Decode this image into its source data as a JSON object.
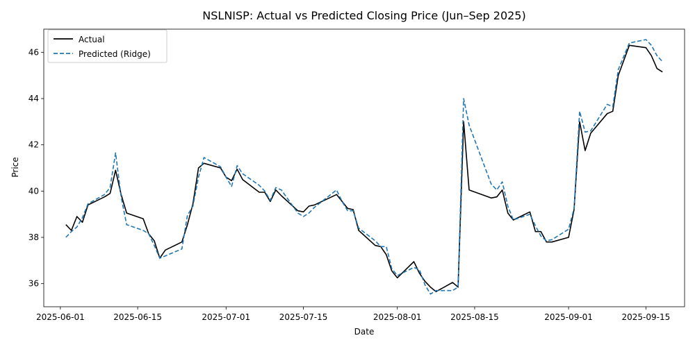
{
  "chart_data": {
    "type": "line",
    "title": "NSLNISP: Actual vs Predicted Closing Price (Jun–Sep 2025)",
    "xlabel": "Date",
    "ylabel": "Price",
    "xlim": [
      "2025-05-29",
      "2025-09-22"
    ],
    "ylim": [
      35,
      47
    ],
    "x_ticks": [
      "2025-06-01",
      "2025-06-15",
      "2025-07-01",
      "2025-07-15",
      "2025-08-01",
      "2025-08-15",
      "2025-09-01",
      "2025-09-15"
    ],
    "y_ticks": [
      36,
      38,
      40,
      42,
      44,
      46
    ],
    "grid": false,
    "legend_position": "top-left",
    "series": [
      {
        "name": "Actual",
        "color": "#000000",
        "style": "solid",
        "points": [
          [
            "2025-06-02",
            38.55
          ],
          [
            "2025-06-03",
            38.3
          ],
          [
            "2025-06-04",
            38.9
          ],
          [
            "2025-06-05",
            38.65
          ],
          [
            "2025-06-06",
            39.4
          ],
          [
            "2025-06-09",
            39.75
          ],
          [
            "2025-06-10",
            39.9
          ],
          [
            "2025-06-11",
            40.9
          ],
          [
            "2025-06-12",
            39.85
          ],
          [
            "2025-06-13",
            39.05
          ],
          [
            "2025-06-16",
            38.8
          ],
          [
            "2025-06-17",
            38.15
          ],
          [
            "2025-06-18",
            37.85
          ],
          [
            "2025-06-19",
            37.1
          ],
          [
            "2025-06-20",
            37.45
          ],
          [
            "2025-06-23",
            37.8
          ],
          [
            "2025-06-24",
            38.55
          ],
          [
            "2025-06-25",
            39.45
          ],
          [
            "2025-06-26",
            41.0
          ],
          [
            "2025-06-27",
            41.2
          ],
          [
            "2025-06-30",
            41.0
          ],
          [
            "2025-07-01",
            40.6
          ],
          [
            "2025-07-02",
            40.45
          ],
          [
            "2025-07-03",
            40.95
          ],
          [
            "2025-07-04",
            40.5
          ],
          [
            "2025-07-07",
            39.95
          ],
          [
            "2025-07-08",
            39.95
          ],
          [
            "2025-07-09",
            39.55
          ],
          [
            "2025-07-10",
            40.05
          ],
          [
            "2025-07-11",
            39.8
          ],
          [
            "2025-07-14",
            39.15
          ],
          [
            "2025-07-15",
            39.1
          ],
          [
            "2025-07-16",
            39.35
          ],
          [
            "2025-07-17",
            39.4
          ],
          [
            "2025-07-21",
            39.85
          ],
          [
            "2025-07-22",
            39.55
          ],
          [
            "2025-07-23",
            39.25
          ],
          [
            "2025-07-24",
            39.2
          ],
          [
            "2025-07-25",
            38.3
          ],
          [
            "2025-07-28",
            37.65
          ],
          [
            "2025-07-29",
            37.6
          ],
          [
            "2025-07-30",
            37.25
          ],
          [
            "2025-07-31",
            36.55
          ],
          [
            "2025-08-01",
            36.25
          ],
          [
            "2025-08-04",
            36.95
          ],
          [
            "2025-08-05",
            36.45
          ],
          [
            "2025-08-06",
            36.1
          ],
          [
            "2025-08-07",
            35.85
          ],
          [
            "2025-08-08",
            35.65
          ],
          [
            "2025-08-11",
            36.05
          ],
          [
            "2025-08-12",
            35.85
          ],
          [
            "2025-08-13",
            43.0
          ],
          [
            "2025-08-14",
            40.05
          ],
          [
            "2025-08-18",
            39.7
          ],
          [
            "2025-08-19",
            39.75
          ],
          [
            "2025-08-20",
            40.05
          ],
          [
            "2025-08-21",
            39.05
          ],
          [
            "2025-08-22",
            38.75
          ],
          [
            "2025-08-25",
            39.1
          ],
          [
            "2025-08-26",
            38.25
          ],
          [
            "2025-08-27",
            38.25
          ],
          [
            "2025-08-28",
            37.8
          ],
          [
            "2025-08-29",
            37.8
          ],
          [
            "2025-09-01",
            38.0
          ],
          [
            "2025-09-02",
            39.2
          ],
          [
            "2025-09-03",
            43.0
          ],
          [
            "2025-09-04",
            41.75
          ],
          [
            "2025-09-05",
            42.5
          ],
          [
            "2025-09-08",
            43.35
          ],
          [
            "2025-09-09",
            43.45
          ],
          [
            "2025-09-10",
            45.0
          ],
          [
            "2025-09-12",
            46.3
          ],
          [
            "2025-09-15",
            46.2
          ],
          [
            "2025-09-16",
            45.85
          ],
          [
            "2025-09-17",
            45.3
          ],
          [
            "2025-09-18",
            45.15
          ]
        ]
      },
      {
        "name": "Predicted (Ridge)",
        "color": "#1f77b4",
        "style": "dashed",
        "points": [
          [
            "2025-06-02",
            38.0
          ],
          [
            "2025-06-03",
            38.25
          ],
          [
            "2025-06-04",
            38.45
          ],
          [
            "2025-06-05",
            38.85
          ],
          [
            "2025-06-06",
            39.45
          ],
          [
            "2025-06-09",
            39.85
          ],
          [
            "2025-06-10",
            40.15
          ],
          [
            "2025-06-11",
            41.65
          ],
          [
            "2025-06-12",
            39.75
          ],
          [
            "2025-06-13",
            38.55
          ],
          [
            "2025-06-16",
            38.3
          ],
          [
            "2025-06-17",
            38.15
          ],
          [
            "2025-06-18",
            37.65
          ],
          [
            "2025-06-19",
            37.1
          ],
          [
            "2025-06-20",
            37.2
          ],
          [
            "2025-06-23",
            37.5
          ],
          [
            "2025-06-24",
            38.95
          ],
          [
            "2025-06-25",
            39.35
          ],
          [
            "2025-06-26",
            40.6
          ],
          [
            "2025-06-27",
            41.45
          ],
          [
            "2025-06-30",
            41.05
          ],
          [
            "2025-07-01",
            40.6
          ],
          [
            "2025-07-02",
            40.2
          ],
          [
            "2025-07-03",
            41.1
          ],
          [
            "2025-07-04",
            40.75
          ],
          [
            "2025-07-07",
            40.25
          ],
          [
            "2025-07-08",
            40.0
          ],
          [
            "2025-07-09",
            39.6
          ],
          [
            "2025-07-10",
            40.15
          ],
          [
            "2025-07-11",
            40.05
          ],
          [
            "2025-07-14",
            39.05
          ],
          [
            "2025-07-15",
            38.9
          ],
          [
            "2025-07-16",
            39.05
          ],
          [
            "2025-07-17",
            39.3
          ],
          [
            "2025-07-21",
            40.05
          ],
          [
            "2025-07-22",
            39.55
          ],
          [
            "2025-07-23",
            39.15
          ],
          [
            "2025-07-24",
            39.15
          ],
          [
            "2025-07-25",
            38.4
          ],
          [
            "2025-07-28",
            37.85
          ],
          [
            "2025-07-29",
            37.6
          ],
          [
            "2025-07-30",
            37.6
          ],
          [
            "2025-07-31",
            36.65
          ],
          [
            "2025-08-01",
            36.35
          ],
          [
            "2025-08-04",
            36.7
          ],
          [
            "2025-08-05",
            36.6
          ],
          [
            "2025-08-06",
            35.95
          ],
          [
            "2025-08-07",
            35.55
          ],
          [
            "2025-08-08",
            35.7
          ],
          [
            "2025-08-11",
            35.7
          ],
          [
            "2025-08-12",
            35.85
          ],
          [
            "2025-08-13",
            44.0
          ],
          [
            "2025-08-14",
            42.85
          ],
          [
            "2025-08-18",
            40.3
          ],
          [
            "2025-08-19",
            40.05
          ],
          [
            "2025-08-20",
            40.4
          ],
          [
            "2025-08-21",
            39.35
          ],
          [
            "2025-08-22",
            38.75
          ],
          [
            "2025-08-25",
            39.0
          ],
          [
            "2025-08-26",
            38.5
          ],
          [
            "2025-08-27",
            38.05
          ],
          [
            "2025-08-28",
            37.85
          ],
          [
            "2025-08-29",
            37.9
          ],
          [
            "2025-09-01",
            38.35
          ],
          [
            "2025-09-02",
            39.25
          ],
          [
            "2025-09-03",
            43.45
          ],
          [
            "2025-09-04",
            42.55
          ],
          [
            "2025-09-05",
            42.6
          ],
          [
            "2025-09-08",
            43.75
          ],
          [
            "2025-09-09",
            43.65
          ],
          [
            "2025-09-10",
            45.25
          ],
          [
            "2025-09-12",
            46.4
          ],
          [
            "2025-09-15",
            46.55
          ],
          [
            "2025-09-16",
            46.3
          ],
          [
            "2025-09-17",
            45.85
          ],
          [
            "2025-09-18",
            45.6
          ]
        ]
      }
    ]
  }
}
